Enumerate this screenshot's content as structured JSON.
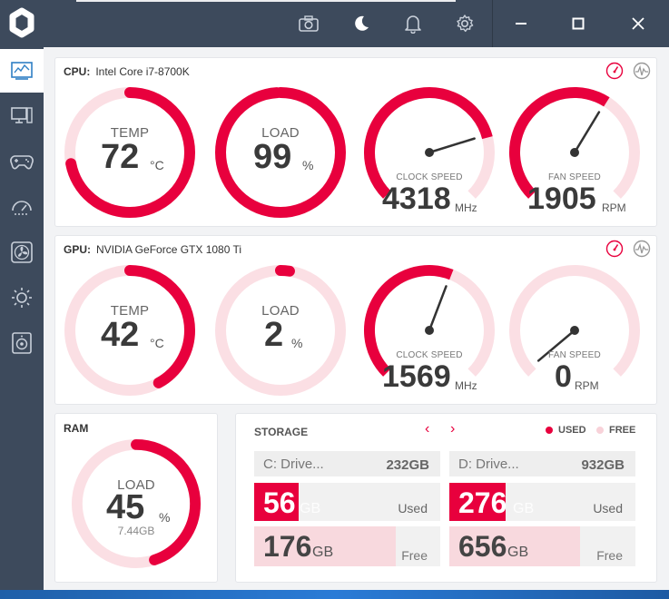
{
  "colors": {
    "accent": "#e8003d",
    "track": "#fbdfe4",
    "sidebar": "#3d4a5c"
  },
  "titlebar": {
    "icons": [
      "camera-icon",
      "moon-icon",
      "bell-icon",
      "gear-icon"
    ],
    "window_controls": [
      "minimize-icon",
      "maximize-icon",
      "close-icon"
    ]
  },
  "sidebar": {
    "items": [
      {
        "icon": "monitor-dashboard-icon",
        "active": true
      },
      {
        "icon": "pc-icon",
        "active": false
      },
      {
        "icon": "gamepad-icon",
        "active": false
      },
      {
        "icon": "speedometer-icon",
        "active": false
      },
      {
        "icon": "fan-icon",
        "active": false
      },
      {
        "icon": "brightness-icon",
        "active": false
      },
      {
        "icon": "speaker-icon",
        "active": false
      }
    ]
  },
  "cpu": {
    "label": "CPU:",
    "name": "Intel Core i7-8700K",
    "temp": {
      "caption": "TEMP",
      "value": "72",
      "unit": "°C",
      "fraction": 0.72
    },
    "load": {
      "caption": "LOAD",
      "value": "99",
      "unit": "%",
      "fraction": 0.99
    },
    "clock": {
      "caption": "CLOCK SPEED",
      "value": "4318",
      "unit": "MHz",
      "fraction": 0.78
    },
    "fan": {
      "caption": "FAN SPEED",
      "value": "1905",
      "unit": "RPM",
      "fraction": 0.62
    }
  },
  "gpu": {
    "label": "GPU:",
    "name": "NVIDIA GeForce GTX 1080 Ti",
    "temp": {
      "caption": "TEMP",
      "value": "42",
      "unit": "°C",
      "fraction": 0.42
    },
    "load": {
      "caption": "LOAD",
      "value": "2",
      "unit": "%",
      "fraction": 0.02
    },
    "clock": {
      "caption": "CLOCK SPEED",
      "value": "1569",
      "unit": "MHz",
      "fraction": 0.58
    },
    "fan": {
      "caption": "FAN SPEED",
      "value": "0",
      "unit": "RPM",
      "fraction": 0.0
    }
  },
  "ram": {
    "label": "RAM",
    "load": {
      "caption": "LOAD",
      "value": "45",
      "unit": "%",
      "sub": "7.44GB",
      "fraction": 0.45
    }
  },
  "storage": {
    "title": "STORAGE",
    "nav_prev": "‹",
    "nav_next": "›",
    "legend_used": "USED",
    "legend_free": "FREE",
    "drives": [
      {
        "name": "C: Drive...",
        "size": "232GB",
        "used": "56",
        "used_unit": "GB",
        "used_label": "Used",
        "free": "176",
        "free_unit": "GB",
        "free_label": "Free",
        "used_fraction": 0.24,
        "free_fraction": 0.76
      },
      {
        "name": "D: Drive...",
        "size": "932GB",
        "used": "276",
        "used_unit": "GB",
        "used_label": "Used",
        "free": "656",
        "free_unit": "GB",
        "free_label": "Free",
        "used_fraction": 0.3,
        "free_fraction": 0.7
      }
    ]
  }
}
